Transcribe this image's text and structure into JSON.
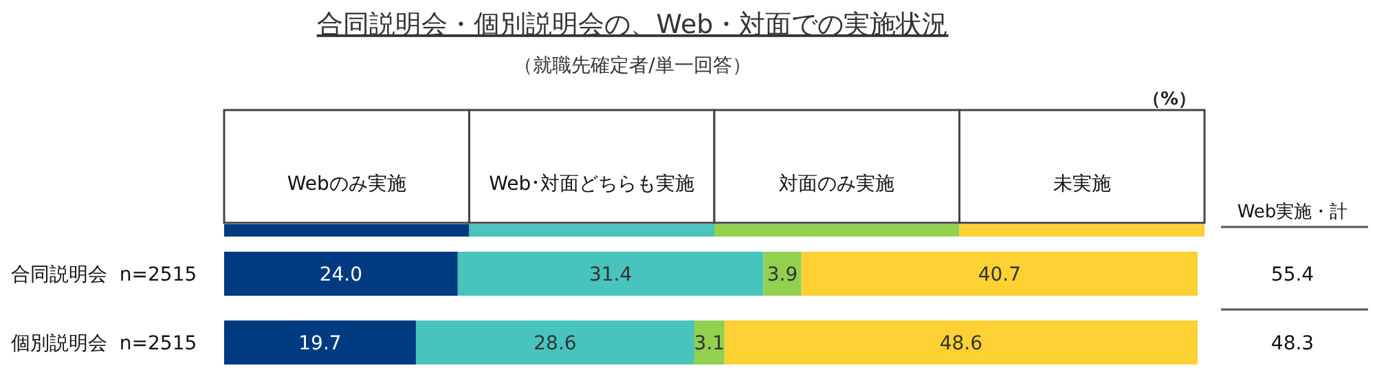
{
  "chart_data": {
    "type": "bar",
    "orientation": "horizontal",
    "stacked": true,
    "title": "合同説明会・個別説明会の、Web・対面での実施状況",
    "subtitle": "（就職先確定者/単一回答）",
    "categories": [
      "合同説明会  n=2515",
      "個別説明会  n=2515"
    ],
    "series": [
      {
        "name": "Webのみ実施",
        "color": "#003a80",
        "values": [
          24.0,
          19.7
        ],
        "value_labels": [
          "24.0",
          "19.7"
        ]
      },
      {
        "name": "Web･対面どちらも実施",
        "color": "#48c4bd",
        "values": [
          31.4,
          28.6
        ],
        "value_labels": [
          "31.4",
          "28.6"
        ]
      },
      {
        "name": "対面のみ実施",
        "color": "#92d050",
        "values": [
          3.9,
          3.1
        ],
        "value_labels": [
          "3.9",
          "3.1"
        ]
      },
      {
        "name": "未実施",
        "color": "#fdd033",
        "values": [
          40.7,
          48.6
        ],
        "value_labels": [
          "40.7",
          "48.6"
        ]
      }
    ],
    "xlim": [
      0,
      100
    ],
    "legend": "top",
    "annotations": [
      "（%）",
      "Web実施・計",
      "55.4",
      "48.3"
    ]
  }
}
